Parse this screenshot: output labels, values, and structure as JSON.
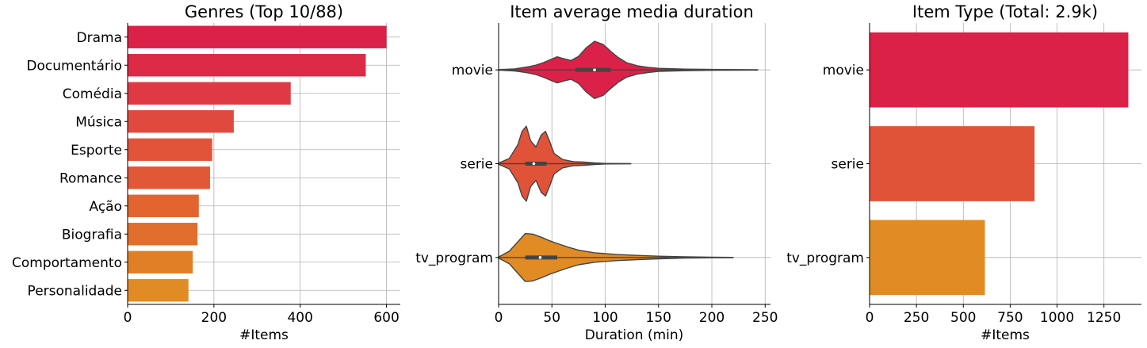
{
  "chart_data": [
    {
      "type": "bar",
      "orientation": "horizontal",
      "title": "Genres (Top 10/88)",
      "xlabel": "#Items",
      "categories": [
        "Drama",
        "Documentário",
        "Comédia",
        "Música",
        "Esporte",
        "Romance",
        "Ação",
        "Biografia",
        "Comportamento",
        "Personalidade"
      ],
      "values": [
        600,
        552,
        378,
        246,
        196,
        191,
        165,
        162,
        151,
        141
      ],
      "xlim": [
        0,
        632
      ],
      "xticks": [
        0,
        200,
        400,
        600
      ],
      "grid": true,
      "colors": [
        "#dc2148",
        "#dd2a46",
        "#df3a43",
        "#e04a3e",
        "#e15439",
        "#e15836",
        "#e2652f",
        "#e16e2c",
        "#e07f26",
        "#e08b23"
      ]
    },
    {
      "type": "violin",
      "title": "Item average media duration",
      "xlabel": "Duration (min)",
      "categories": [
        "movie",
        "serie",
        "tv_program"
      ],
      "xlim": [
        0,
        255
      ],
      "xticks": [
        0,
        50,
        100,
        150,
        200,
        250
      ],
      "grid": true,
      "colors": [
        "#dc2148",
        "#e15338",
        "#e08b23"
      ],
      "box": [
        {
          "q1": 72,
          "median": 90,
          "q3": 105,
          "whisker_min": 0,
          "whisker_max": 240
        },
        {
          "q1": 25,
          "median": 33,
          "q3": 45,
          "whisker_min": 0,
          "whisker_max": 124
        },
        {
          "q1": 25,
          "median": 39,
          "q3": 55,
          "whisker_min": 0,
          "whisker_max": 220
        }
      ],
      "density": [
        {
          "x": [
            0,
            15,
            22,
            28,
            35,
            42,
            50,
            55,
            60,
            68,
            75,
            82,
            90,
            98,
            105,
            112,
            120,
            130,
            140,
            150,
            175,
            200,
            243
          ],
          "w": [
            0.005,
            0.02,
            0.04,
            0.06,
            0.09,
            0.14,
            0.21,
            0.25,
            0.22,
            0.18,
            0.26,
            0.42,
            0.55,
            0.49,
            0.36,
            0.24,
            0.14,
            0.08,
            0.05,
            0.03,
            0.015,
            0.008,
            0.003
          ]
        },
        {
          "x": [
            0,
            10,
            18,
            22,
            26,
            30,
            35,
            40,
            44,
            48,
            52,
            60,
            70,
            80,
            90,
            100,
            124
          ],
          "w": [
            0.01,
            0.1,
            0.36,
            0.62,
            0.72,
            0.44,
            0.32,
            0.55,
            0.62,
            0.42,
            0.2,
            0.08,
            0.04,
            0.03,
            0.015,
            0.006,
            0.002
          ]
        },
        {
          "x": [
            0,
            10,
            18,
            25,
            32,
            40,
            48,
            55,
            65,
            75,
            90,
            110,
            130,
            150,
            175,
            200,
            220
          ],
          "w": [
            0.01,
            0.12,
            0.3,
            0.46,
            0.45,
            0.39,
            0.32,
            0.27,
            0.2,
            0.14,
            0.09,
            0.06,
            0.04,
            0.025,
            0.012,
            0.005,
            0.002
          ]
        }
      ]
    },
    {
      "type": "bar",
      "orientation": "horizontal",
      "title": "Item Type (Total: 2.9k)",
      "xlabel": "#Items",
      "categories": [
        "movie",
        "serie",
        "tv_program"
      ],
      "values": [
        1380,
        880,
        615
      ],
      "xlim": [
        0,
        1450
      ],
      "xticks": [
        0,
        250,
        500,
        750,
        1000,
        1250
      ],
      "grid": true,
      "colors": [
        "#dc2148",
        "#e15338",
        "#e08b23"
      ]
    }
  ]
}
